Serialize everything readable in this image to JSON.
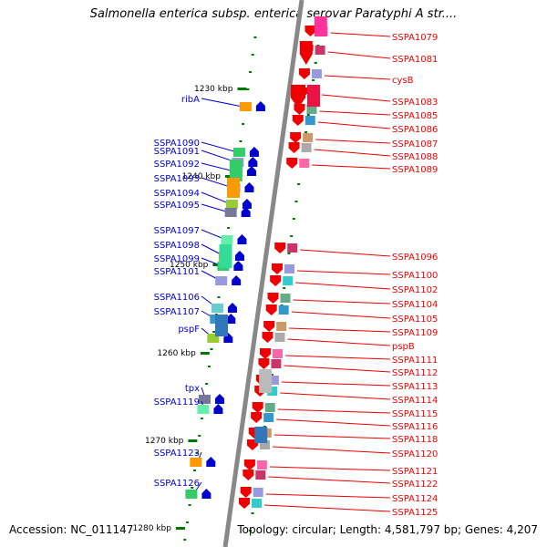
{
  "title": "Salmonella enterica subsp. enterica serovar Paratyphi A str....",
  "accession": "Accession: NC_011147",
  "topology": "Topology: circular; Length: 4,581,797 bp; Genes: 4,207",
  "colors": {
    "reverse": "#0000cc",
    "forward": "#ee0000",
    "tick": "#007700",
    "backbone": "#888888"
  },
  "scale_labels": [
    "1230 kbp",
    "1240 kbp",
    "1250 kbp",
    "1260 kbp",
    "1270 kbp",
    "1280 kbp"
  ],
  "left_genes": [
    "ribA",
    "SSPA1090",
    "SSPA1091",
    "SSPA1092",
    "SSPA1093",
    "SSPA1094",
    "SSPA1095",
    "SSPA1097",
    "SSPA1098",
    "SSPA1099",
    "SSPA1101",
    "SSPA1106",
    "SSPA1107",
    "pspF",
    "tpx",
    "SSPA1119",
    "SSPA1123",
    "SSPA1126"
  ],
  "right_genes": [
    "SSPA1079",
    "SSPA1081",
    "cysB",
    "SSPA1083",
    "SSPA1085",
    "SSPA1086",
    "SSPA1087",
    "SSPA1088",
    "SSPA1089",
    "SSPA1096",
    "SSPA1100",
    "SSPA1102",
    "SSPA1104",
    "SSPA1105",
    "SSPA1109",
    "pspB",
    "SSPA1111",
    "SSPA1112",
    "SSPA1113",
    "SSPA1114",
    "SSPA1115",
    "SSPA1116",
    "SSPA1118",
    "SSPA1120",
    "SSPA1121",
    "SSPA1122",
    "SSPA1124",
    "SSPA1125"
  ]
}
